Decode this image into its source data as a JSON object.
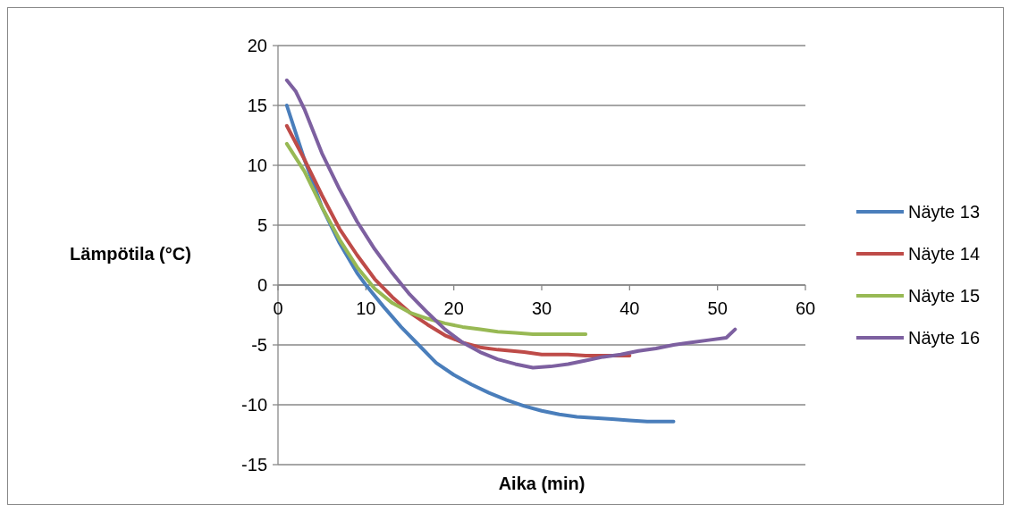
{
  "chart_data": {
    "type": "line",
    "xlabel": "Aika (min)",
    "ylabel": "Lämpötila (°C)",
    "xlim": [
      0,
      60
    ],
    "xticks": [
      0,
      10,
      20,
      30,
      40,
      50,
      60
    ],
    "ylim": [
      -15,
      20
    ],
    "yticks": [
      -15,
      -10,
      -5,
      0,
      5,
      10,
      15,
      20
    ],
    "grid": "y",
    "legend": "right",
    "marker": "none",
    "line_style": "solid",
    "series": [
      {
        "name": "Näyte 13",
        "color": "#4a7ebb",
        "x": [
          1,
          3,
          5,
          7,
          9,
          10,
          12,
          14,
          16,
          18,
          20,
          22,
          24,
          26,
          28,
          30,
          32,
          34,
          36,
          38,
          40,
          42,
          45
        ],
        "values": [
          15,
          10.5,
          6.5,
          3.5,
          1,
          0,
          -1.8,
          -3.5,
          -5,
          -6.5,
          -7.5,
          -8.3,
          -9,
          -9.6,
          -10.1,
          -10.5,
          -10.8,
          -11,
          -11.1,
          -11.2,
          -11.3,
          -11.4,
          -11.4
        ]
      },
      {
        "name": "Näyte 14",
        "color": "#be4b48",
        "x": [
          1,
          3,
          5,
          7,
          9,
          11,
          13,
          15,
          17,
          19,
          21,
          23,
          25,
          28,
          30,
          33,
          35,
          40
        ],
        "values": [
          13.3,
          10.5,
          7.5,
          4.7,
          2.5,
          0.5,
          -1,
          -2.3,
          -3.3,
          -4.2,
          -4.8,
          -5.2,
          -5.4,
          -5.6,
          -5.8,
          -5.8,
          -5.9,
          -5.9
        ]
      },
      {
        "name": "Näyte 15",
        "color": "#98b954",
        "x": [
          1,
          3,
          5,
          7,
          9,
          11,
          13,
          15,
          17,
          19,
          21,
          23,
          25,
          27,
          29,
          32,
          35
        ],
        "values": [
          11.8,
          9.5,
          6.5,
          3.8,
          1.5,
          -0.3,
          -1.5,
          -2.3,
          -2.8,
          -3.2,
          -3.5,
          -3.7,
          -3.9,
          -4,
          -4.1,
          -4.1,
          -4.1
        ]
      },
      {
        "name": "Näyte 16",
        "color": "#7d60a0",
        "x": [
          1,
          2,
          3,
          5,
          7,
          9,
          11,
          13,
          15,
          17,
          19,
          21,
          23,
          25,
          27,
          29,
          31,
          33,
          35,
          37,
          39,
          41,
          43,
          45,
          47,
          49,
          51,
          52
        ],
        "values": [
          17.1,
          16.2,
          14.7,
          11,
          8,
          5.3,
          3,
          1,
          -0.8,
          -2.3,
          -3.7,
          -4.8,
          -5.6,
          -6.2,
          -6.6,
          -6.9,
          -6.8,
          -6.6,
          -6.3,
          -6,
          -5.8,
          -5.5,
          -5.3,
          -5,
          -4.8,
          -4.6,
          -4.4,
          -3.7
        ]
      }
    ]
  }
}
